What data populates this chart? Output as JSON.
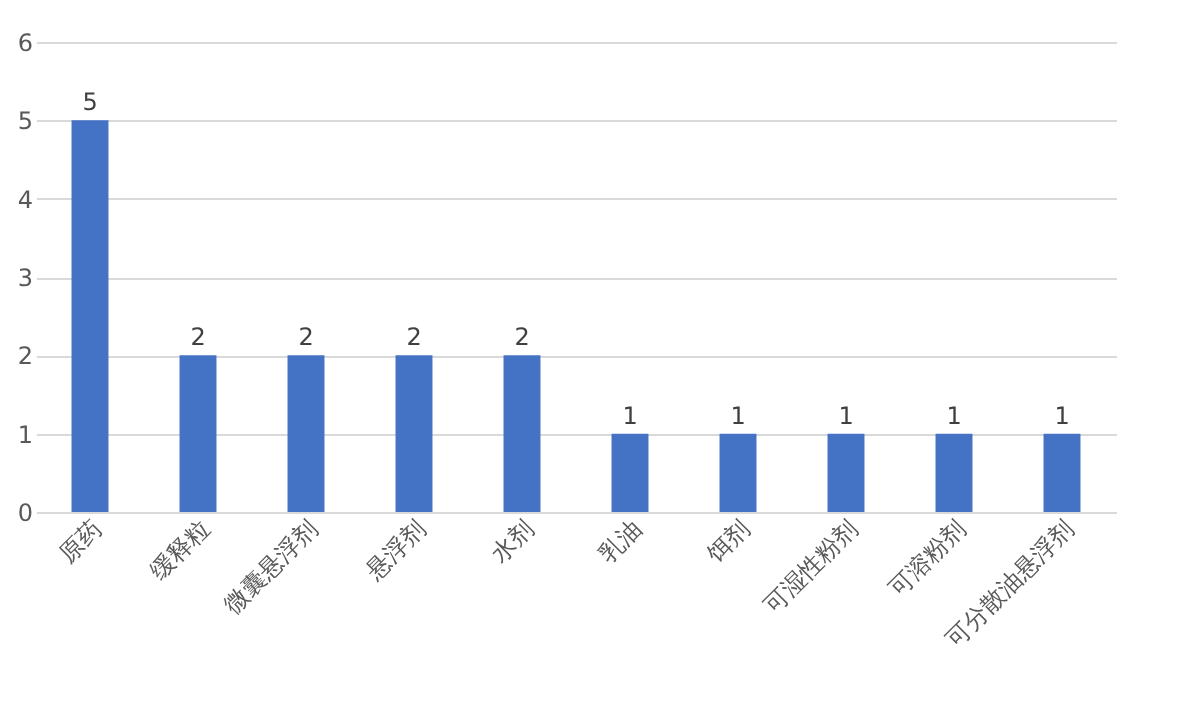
{
  "chart_data": {
    "type": "bar",
    "categories": [
      "原药",
      "缓释粒",
      "微囊悬浮剂",
      "悬浮剂",
      "水剂",
      "乳油",
      "饵剂",
      "可湿性粉剂",
      "可溶粉剂",
      "可分散油悬浮剂"
    ],
    "values": [
      5,
      2,
      2,
      2,
      2,
      1,
      1,
      1,
      1,
      1
    ],
    "color": "#4472c4",
    "ylim": [
      0,
      6
    ],
    "yticks": [
      0,
      1,
      2,
      3,
      4,
      5,
      6
    ],
    "grid": "y",
    "data_labels": true
  }
}
